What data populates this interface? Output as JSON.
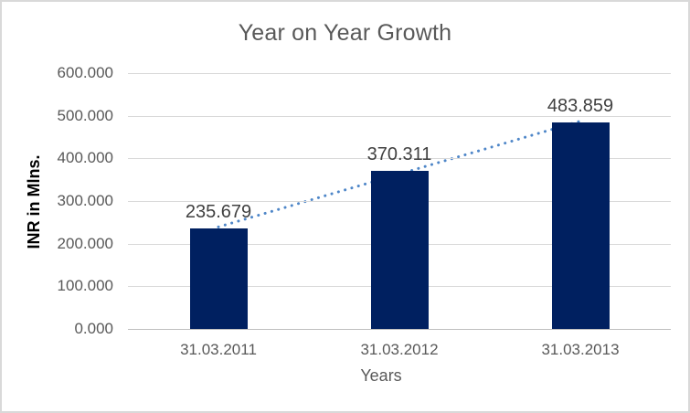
{
  "chart_data": {
    "type": "bar",
    "title": "Year on Year Growth",
    "xlabel": "Years",
    "ylabel": "INR in Mlns.",
    "categories": [
      "31.03.2011",
      "31.03.2012",
      "31.03.2013"
    ],
    "values": [
      235.679,
      370.311,
      483.859
    ],
    "data_labels": [
      "235.679",
      "370.311",
      "483.859"
    ],
    "ylim": [
      0,
      600
    ],
    "yticks": [
      {
        "value": 600,
        "label": "600.000"
      },
      {
        "value": 500,
        "label": "500.000"
      },
      {
        "value": 400,
        "label": "400.000"
      },
      {
        "value": 300,
        "label": "300.000"
      },
      {
        "value": 200,
        "label": "200.000"
      },
      {
        "value": 100,
        "label": "100.000"
      },
      {
        "value": 0,
        "label": "0.000"
      }
    ],
    "grid": true,
    "legend": "none",
    "trendline": {
      "type": "linear",
      "style": "dotted",
      "start_value": 239.193,
      "end_value": 487.373
    },
    "colors": {
      "bar": "#002060",
      "trendline": "#4E86C8",
      "gridline": "#D9D9D9",
      "axis_line": "#BFBFBF",
      "title_text": "#595959",
      "tick_text": "#595959",
      "data_label_text": "#404040",
      "y_axis_title_text": "#000000",
      "x_axis_title_text": "#595959",
      "border": "#D9D9D9",
      "background": "#FFFFFF"
    }
  }
}
